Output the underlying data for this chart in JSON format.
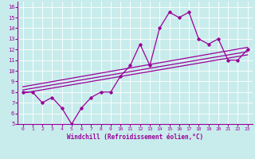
{
  "xlabel": "Windchill (Refroidissement éolien,°C)",
  "bg_color": "#c8ecec",
  "line_color": "#990099",
  "grid_color": "#ffffff",
  "xlim": [
    -0.5,
    23.5
  ],
  "ylim": [
    5,
    16.5
  ],
  "xticks": [
    0,
    1,
    2,
    3,
    4,
    5,
    6,
    7,
    8,
    9,
    10,
    11,
    12,
    13,
    14,
    15,
    16,
    17,
    18,
    19,
    20,
    21,
    22,
    23
  ],
  "yticks": [
    5,
    6,
    7,
    8,
    9,
    10,
    11,
    12,
    13,
    14,
    15,
    16
  ],
  "main_x": [
    0,
    1,
    2,
    3,
    4,
    5,
    6,
    7,
    8,
    9,
    10,
    11,
    12,
    13,
    14,
    15,
    16,
    17,
    18,
    19,
    20,
    21,
    22,
    23
  ],
  "main_y": [
    8,
    8,
    7,
    7.5,
    6.5,
    5,
    6.5,
    7.5,
    8,
    8,
    9.5,
    10.5,
    12.5,
    10.5,
    14,
    15.5,
    15,
    15.5,
    13,
    12.5,
    13,
    11,
    11,
    12
  ],
  "reg_line1_x": [
    0,
    23
  ],
  "reg_line1_y": [
    8.2,
    11.8
  ],
  "reg_line2_x": [
    0,
    23
  ],
  "reg_line2_y": [
    7.9,
    11.5
  ],
  "reg_line3_x": [
    0,
    23
  ],
  "reg_line3_y": [
    8.5,
    12.2
  ]
}
